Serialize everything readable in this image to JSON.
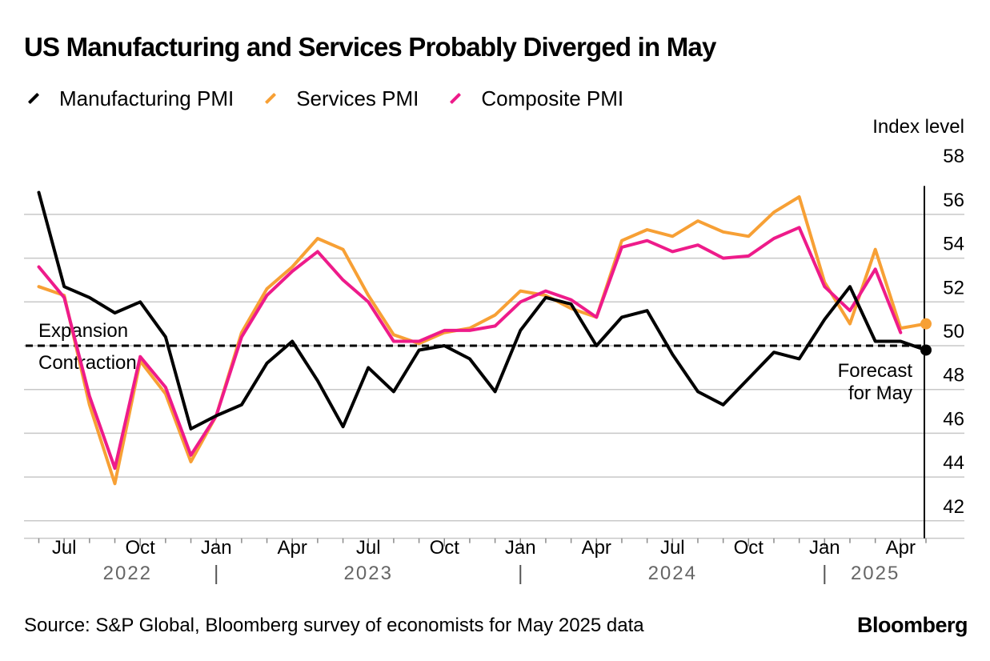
{
  "title": "US Manufacturing and Services Probably Diverged in May",
  "source": "Source: S&P Global, Bloomberg survey of economists for May 2025 data",
  "brand": "Bloomberg",
  "colors": {
    "manufacturing": "#000000",
    "services": "#f7a035",
    "composite": "#ee1b8a",
    "grid": "#c8c8c8"
  },
  "chart_data": {
    "type": "line",
    "ylabel": "Index level",
    "ylim": [
      41,
      58
    ],
    "yticks": [
      42,
      44,
      46,
      48,
      50,
      52,
      54,
      56,
      58
    ],
    "grid": true,
    "legend_position": "top-left",
    "x": [
      "2022-06",
      "2022-07",
      "2022-08",
      "2022-09",
      "2022-10",
      "2022-11",
      "2022-12",
      "2023-01",
      "2023-02",
      "2023-03",
      "2023-04",
      "2023-05",
      "2023-06",
      "2023-07",
      "2023-08",
      "2023-09",
      "2023-10",
      "2023-11",
      "2023-12",
      "2024-01",
      "2024-02",
      "2024-03",
      "2024-04",
      "2024-05",
      "2024-06",
      "2024-07",
      "2024-08",
      "2024-09",
      "2024-10",
      "2024-11",
      "2024-12",
      "2025-01",
      "2025-02",
      "2025-03",
      "2025-04",
      "2025-05"
    ],
    "x_tick_labels": [
      {
        "month": "2022-07",
        "label": "Jul"
      },
      {
        "month": "2022-10",
        "label": "Oct"
      },
      {
        "month": "2023-01",
        "label": "Jan"
      },
      {
        "month": "2023-04",
        "label": "Apr"
      },
      {
        "month": "2023-07",
        "label": "Jul"
      },
      {
        "month": "2023-10",
        "label": "Oct"
      },
      {
        "month": "2024-01",
        "label": "Jan"
      },
      {
        "month": "2024-04",
        "label": "Apr"
      },
      {
        "month": "2024-07",
        "label": "Jul"
      },
      {
        "month": "2024-10",
        "label": "Oct"
      },
      {
        "month": "2025-01",
        "label": "Jan"
      },
      {
        "month": "2025-04",
        "label": "Apr"
      }
    ],
    "year_labels": [
      {
        "label": "2022",
        "center": "2022-09.5"
      },
      {
        "label": "2023",
        "center": "2023-07"
      },
      {
        "label": "2024",
        "center": "2024-07"
      },
      {
        "label": "2025",
        "center": "2025-03"
      }
    ],
    "year_dividers": [
      "2023-01",
      "2024-01",
      "2025-01"
    ],
    "series": [
      {
        "name": "Manufacturing PMI",
        "color": "#000000",
        "values": [
          57.0,
          52.7,
          52.2,
          51.5,
          52.0,
          50.4,
          46.2,
          46.8,
          47.3,
          49.2,
          50.2,
          48.4,
          46.3,
          49.0,
          47.9,
          49.8,
          50.0,
          49.4,
          47.9,
          50.7,
          52.2,
          51.9,
          50.0,
          51.3,
          51.6,
          49.6,
          47.9,
          47.3,
          48.5,
          49.7,
          49.4,
          51.2,
          52.7,
          50.2,
          50.2,
          49.8
        ],
        "values_note_last": "May 2025 value is a forecast"
      },
      {
        "name": "Services PMI",
        "color": "#f7a035",
        "values": [
          52.7,
          52.3,
          47.3,
          43.7,
          49.3,
          47.8,
          44.7,
          46.8,
          50.6,
          52.6,
          53.6,
          54.9,
          54.4,
          52.3,
          50.5,
          50.1,
          50.6,
          50.8,
          51.4,
          52.5,
          52.3,
          51.7,
          51.3,
          54.8,
          55.3,
          55.0,
          55.7,
          55.2,
          55.0,
          56.1,
          56.8,
          52.9,
          51.0,
          54.4,
          50.8,
          51.0
        ],
        "values_note_last": "May 2025 value is a forecast"
      },
      {
        "name": "Composite PMI",
        "color": "#ee1b8a",
        "values": [
          53.6,
          52.2,
          47.7,
          44.4,
          49.5,
          48.1,
          45.0,
          46.8,
          50.4,
          52.3,
          53.4,
          54.3,
          53.0,
          52.0,
          50.2,
          50.2,
          50.7,
          50.7,
          50.9,
          52.0,
          52.5,
          52.1,
          51.3,
          54.5,
          54.8,
          54.3,
          54.6,
          54.0,
          54.1,
          54.9,
          55.4,
          52.7,
          51.6,
          53.5,
          50.6,
          null
        ]
      }
    ],
    "annotations": {
      "threshold": 50,
      "expansion_label": "Expansion",
      "contraction_label": "Contraction",
      "forecast_label_line1": "Forecast",
      "forecast_label_line2": "for May"
    }
  }
}
